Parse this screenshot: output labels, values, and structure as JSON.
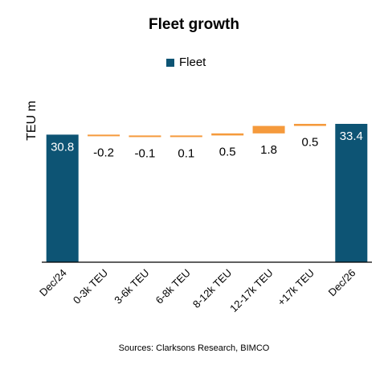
{
  "chart_data": {
    "type": "bar",
    "subtype": "waterfall",
    "title": "Fleet growth",
    "ylabel": "TEU m",
    "xlabel": "",
    "legend": {
      "label": "Fleet",
      "position": "top"
    },
    "categories": [
      "Dec/24",
      "0-3k TEU",
      "3-6k TEU",
      "6-8k TEU",
      "8-12k TEU",
      "12-17k TEU",
      "+17k TEU",
      "Dec/26"
    ],
    "values": [
      30.8,
      -0.2,
      -0.1,
      0.1,
      0.5,
      1.8,
      0.5,
      33.4
    ],
    "labels": [
      "30.8",
      "-0.2",
      "-0.1",
      "0.1",
      "0.5",
      "1.8",
      "0.5",
      "33.4"
    ],
    "kinds": [
      "total",
      "delta",
      "delta",
      "delta",
      "delta",
      "delta",
      "delta",
      "total"
    ],
    "ylim": [
      0,
      33.4
    ],
    "grid": false,
    "colors": {
      "total": "#0d5474",
      "delta": "#f59a3c",
      "axis": "#000000"
    },
    "source": "Sources: Clarksons Research, BIMCO"
  }
}
